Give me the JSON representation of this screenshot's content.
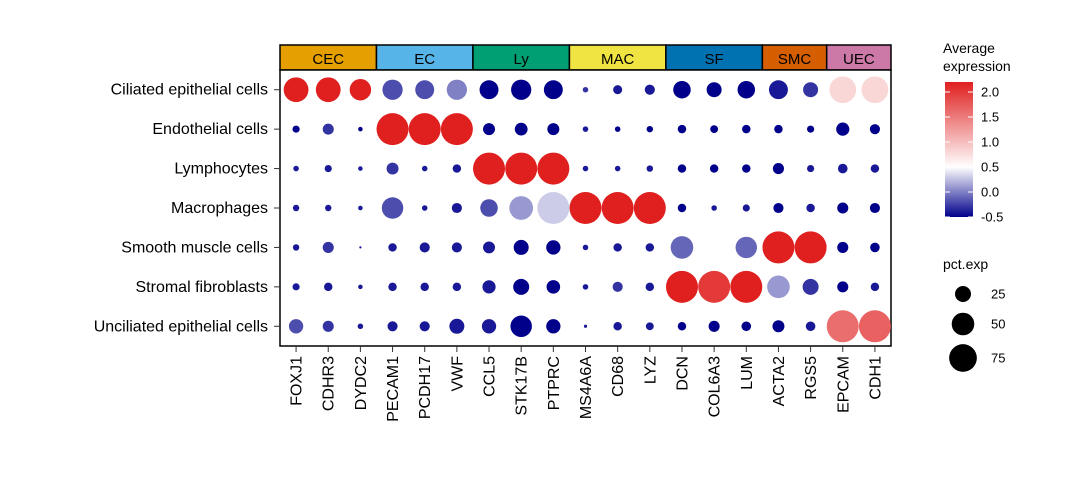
{
  "chart_data": {
    "type": "dotplot",
    "title": "",
    "xlabel": "",
    "ylabel": "",
    "genes": [
      "FOXJ1",
      "CDHR3",
      "DYDC2",
      "PECAM1",
      "PCDH17",
      "VWF",
      "CCL5",
      "STK17B",
      "PTPRC",
      "MS4A6A",
      "CD68",
      "LYZ",
      "DCN",
      "COL6A3",
      "LUM",
      "ACTA2",
      "RGS5",
      "EPCAM",
      "CDH1"
    ],
    "cell_types": [
      "Ciliated epithelial cells",
      "Endothelial cells",
      "Lymphocytes",
      "Macrophages",
      "Smooth muscle cells",
      "Stromal fibroblasts",
      "Unciliated epithelial cells"
    ],
    "groups": [
      {
        "label": "CEC",
        "color": "#E69F00",
        "count": 3
      },
      {
        "label": "EC",
        "color": "#56B4E9",
        "count": 3
      },
      {
        "label": "Ly",
        "color": "#009E73",
        "count": 3
      },
      {
        "label": "MAC",
        "color": "#F0E442",
        "count": 3
      },
      {
        "label": "SF",
        "color": "#0072B2",
        "count": 3
      },
      {
        "label": "SMC",
        "color": "#D55E00",
        "count": 2
      },
      {
        "label": "UEC",
        "color": "#CC79A7",
        "count": 2
      }
    ],
    "avg_expression": [
      [
        2.2,
        2.2,
        2.2,
        -0.2,
        -0.2,
        0.0,
        -0.5,
        -0.5,
        -0.5,
        -0.3,
        -0.4,
        -0.4,
        -0.5,
        -0.5,
        -0.5,
        -0.4,
        -0.3,
        0.8,
        0.8
      ],
      [
        -0.5,
        -0.3,
        -0.5,
        2.2,
        2.2,
        2.2,
        -0.5,
        -0.5,
        -0.5,
        -0.4,
        -0.5,
        -0.5,
        -0.5,
        -0.5,
        -0.5,
        -0.5,
        -0.5,
        -0.5,
        -0.5
      ],
      [
        -0.4,
        -0.4,
        -0.4,
        -0.3,
        -0.4,
        -0.4,
        2.2,
        2.2,
        2.2,
        -0.4,
        -0.4,
        -0.4,
        -0.5,
        -0.5,
        -0.5,
        -0.5,
        -0.4,
        -0.4,
        -0.4
      ],
      [
        -0.4,
        -0.4,
        -0.4,
        -0.2,
        -0.4,
        -0.4,
        -0.2,
        0.1,
        0.3,
        2.2,
        2.2,
        2.2,
        -0.5,
        -0.4,
        -0.4,
        -0.5,
        -0.4,
        -0.5,
        -0.5
      ],
      [
        -0.4,
        -0.3,
        -0.4,
        -0.4,
        -0.4,
        -0.4,
        -0.4,
        -0.5,
        -0.5,
        -0.4,
        -0.4,
        -0.4,
        -0.1,
        0.5,
        -0.1,
        2.2,
        2.2,
        -0.5,
        -0.5
      ],
      [
        -0.4,
        -0.4,
        -0.4,
        -0.4,
        -0.4,
        -0.4,
        -0.4,
        -0.5,
        -0.5,
        -0.4,
        -0.3,
        -0.4,
        2.2,
        2.0,
        2.2,
        0.1,
        -0.3,
        -0.5,
        -0.4
      ],
      [
        -0.2,
        -0.3,
        -0.4,
        -0.4,
        -0.4,
        -0.4,
        -0.4,
        -0.5,
        -0.5,
        -0.4,
        -0.4,
        -0.4,
        -0.5,
        -0.5,
        -0.5,
        -0.5,
        -0.4,
        1.6,
        1.7
      ]
    ],
    "pct_exp": [
      [
        60,
        60,
        45,
        40,
        35,
        40,
        35,
        40,
        35,
        3,
        8,
        10,
        30,
        22,
        30,
        35,
        22,
        70,
        70
      ],
      [
        5,
        12,
        2,
        100,
        100,
        100,
        14,
        16,
        14,
        3,
        3,
        4,
        7,
        6,
        7,
        7,
        5,
        17,
        10
      ],
      [
        3,
        5,
        2,
        14,
        3,
        7,
        100,
        100,
        100,
        3,
        3,
        4,
        7,
        7,
        7,
        12,
        5,
        9,
        7
      ],
      [
        4,
        4,
        2,
        45,
        3,
        10,
        30,
        55,
        100,
        100,
        100,
        100,
        7,
        3,
        5,
        10,
        7,
        12,
        10
      ],
      [
        4,
        12,
        0.5,
        7,
        10,
        10,
        14,
        22,
        20,
        3,
        7,
        7,
        50,
        50,
        45,
        100,
        100,
        12,
        9
      ],
      [
        5,
        7,
        2,
        7,
        7,
        7,
        17,
        25,
        18,
        3,
        10,
        7,
        100,
        100,
        100,
        50,
        25,
        12,
        7
      ],
      [
        20,
        12,
        3,
        10,
        10,
        22,
        20,
        45,
        20,
        1,
        7,
        6,
        7,
        12,
        9,
        14,
        9,
        100,
        100
      ]
    ],
    "color_scale": {
      "low": "#00008B",
      "mid": "#FFFFFF",
      "high": "#E01F1F",
      "min": -0.5,
      "mid_value": 0.5,
      "max": 2.2
    },
    "legend_color": {
      "title_line1": "Average",
      "title_line2": "expression",
      "ticks": [
        2.0,
        1.5,
        1.0,
        0.5,
        0.0,
        -0.5
      ],
      "tick_labels": [
        "2.0",
        "1.5",
        "1.0",
        "0.5",
        "0.0",
        "-0.5"
      ]
    },
    "legend_size": {
      "title": "pct.exp",
      "values": [
        25,
        50,
        75
      ],
      "labels": [
        "25",
        "50",
        "75"
      ]
    }
  }
}
